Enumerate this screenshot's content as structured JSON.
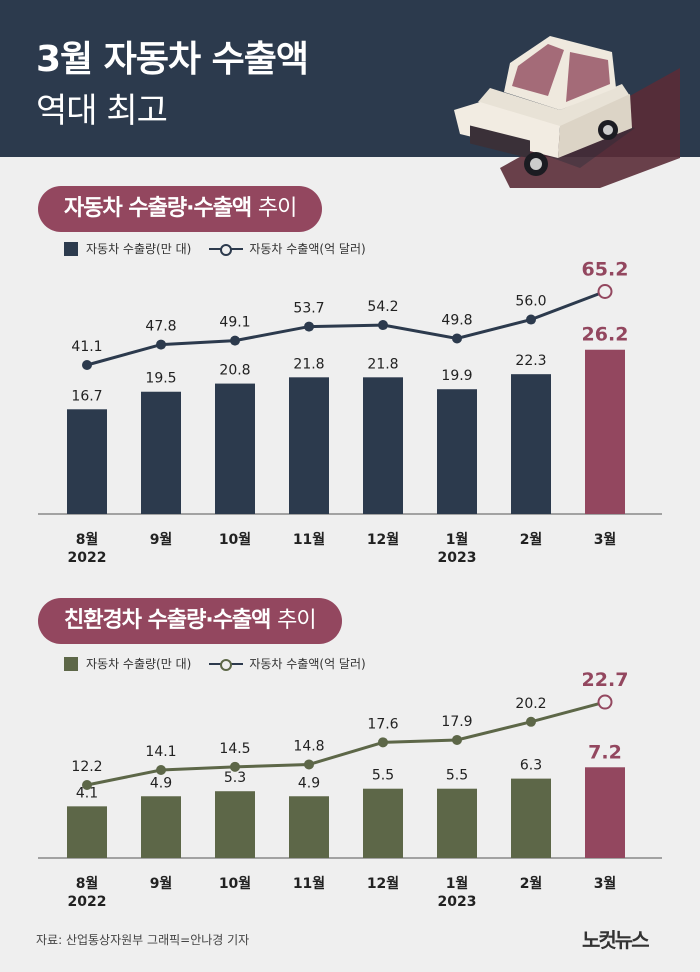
{
  "header": {
    "title_line1": "3월 자동차 수출액",
    "title_line2": "역대 최고"
  },
  "colors": {
    "navy": "#2c3a4d",
    "olive": "#5d6748",
    "highlight": "#93475f",
    "background": "#efefef"
  },
  "chart_data": [
    {
      "type": "bar",
      "title_main": "자동차 수출량·수출액",
      "title_suffix": "추이",
      "legend": {
        "bar": "자동차 수출량(만 대)",
        "line": "자동차 수출액(억 달러)"
      },
      "categories": [
        {
          "month": "8월",
          "year": "2022"
        },
        {
          "month": "9월",
          "year": ""
        },
        {
          "month": "10월",
          "year": ""
        },
        {
          "month": "11월",
          "year": ""
        },
        {
          "month": "12월",
          "year": ""
        },
        {
          "month": "1월",
          "year": "2023"
        },
        {
          "month": "2월",
          "year": ""
        },
        {
          "month": "3월",
          "year": ""
        }
      ],
      "series": [
        {
          "kind": "bar",
          "values": [
            16.7,
            19.5,
            20.8,
            21.8,
            21.8,
            19.9,
            22.3,
            26.2
          ]
        },
        {
          "kind": "line",
          "values": [
            41.1,
            47.8,
            49.1,
            53.7,
            54.2,
            49.8,
            56.0,
            65.2
          ]
        }
      ],
      "bar_labels": [
        "16.7",
        "19.5",
        "20.8",
        "21.8",
        "21.8",
        "19.9",
        "22.3",
        "26.2"
      ],
      "line_labels": [
        "41.1",
        "47.8",
        "49.1",
        "53.7",
        "54.2",
        "49.8",
        "56.0",
        "65.2"
      ],
      "bar_color": "#2c3a4d",
      "line_color": "#2c3a4d",
      "highlight_index": 7
    },
    {
      "type": "bar",
      "title_main": "친환경차 수출량·수출액",
      "title_suffix": "추이",
      "legend": {
        "bar": "자동차 수출량(만 대)",
        "line": "자동차 수출액(억 달러)"
      },
      "categories": [
        {
          "month": "8월",
          "year": "2022"
        },
        {
          "month": "9월",
          "year": ""
        },
        {
          "month": "10월",
          "year": ""
        },
        {
          "month": "11월",
          "year": ""
        },
        {
          "month": "12월",
          "year": ""
        },
        {
          "month": "1월",
          "year": "2023"
        },
        {
          "month": "2월",
          "year": ""
        },
        {
          "month": "3월",
          "year": ""
        }
      ],
      "series": [
        {
          "kind": "bar",
          "values": [
            4.1,
            4.9,
            5.3,
            4.9,
            5.5,
            5.5,
            6.3,
            7.2
          ]
        },
        {
          "kind": "line",
          "values": [
            12.2,
            14.1,
            14.5,
            14.8,
            17.6,
            17.9,
            20.2,
            22.7
          ]
        }
      ],
      "bar_labels": [
        "4.1",
        "4.9",
        "5.3",
        "4.9",
        "5.5",
        "5.5",
        "6.3",
        "7.2"
      ],
      "line_labels": [
        "12.2",
        "14.1",
        "14.5",
        "14.8",
        "17.6",
        "17.9",
        "20.2",
        "22.7"
      ],
      "bar_color": "#5d6748",
      "line_color": "#5d6748",
      "highlight_index": 7
    }
  ],
  "footer": {
    "source": "자료: 산업통상자원부     그래픽=안나경 기자",
    "logo": "노컷뉴스"
  }
}
